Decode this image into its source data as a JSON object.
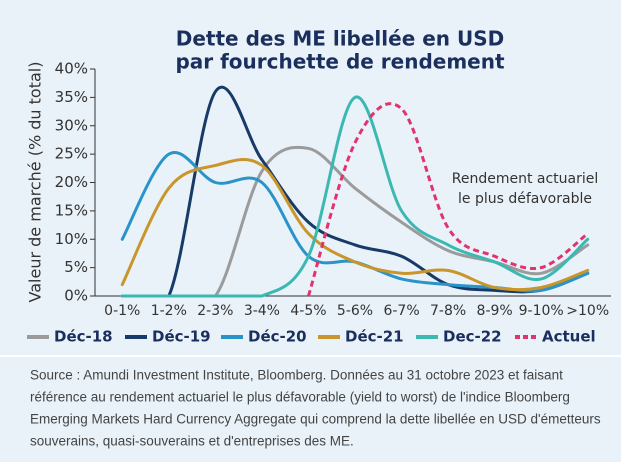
{
  "chart_data": {
    "type": "line",
    "title": [
      "Dette des ME libellée en USD",
      "par fourchette de rendement"
    ],
    "ylabel": "Valeur de marché (% du total)",
    "categories": [
      "0-1%",
      "1-2%",
      "2-3%",
      "3-4%",
      "4-5%",
      "5-6%",
      "6-7%",
      "7-8%",
      "8-9%",
      "9-10%",
      ">10%"
    ],
    "ylim": [
      0,
      40
    ],
    "yticks": [
      {
        "value": 0,
        "label": "0%"
      },
      {
        "value": 5,
        "label": "5%"
      },
      {
        "value": 10,
        "label": "10%"
      },
      {
        "value": 15,
        "label": "15%"
      },
      {
        "value": 20,
        "label": "20%"
      },
      {
        "value": 25,
        "label": "25%"
      },
      {
        "value": 30,
        "label": "30%"
      },
      {
        "value": 35,
        "label": "35%"
      },
      {
        "value": 40,
        "label": "40%"
      }
    ],
    "series": [
      {
        "name": "Déc-18",
        "color": "#9b9b9b",
        "dashed": false,
        "values": [
          0,
          0,
          0,
          22,
          26,
          19,
          13,
          8,
          6,
          4,
          9
        ]
      },
      {
        "name": "Déc-19",
        "color": "#173a68",
        "dashed": false,
        "values": [
          0,
          0,
          36,
          24,
          13,
          9,
          7,
          2,
          1,
          1,
          4
        ]
      },
      {
        "name": "Déc-20",
        "color": "#2a93c9",
        "dashed": false,
        "values": [
          10,
          25,
          20,
          20,
          7,
          6,
          3,
          2,
          1.5,
          1,
          4
        ]
      },
      {
        "name": "Déc-21",
        "color": "#c9962b",
        "dashed": false,
        "values": [
          2,
          19,
          23,
          23,
          11,
          6,
          4,
          4.5,
          1.5,
          1.5,
          4.5
        ]
      },
      {
        "name": "Dec-22",
        "color": "#3bb8b2",
        "dashed": false,
        "values": [
          0,
          0,
          0,
          0,
          7,
          35,
          15,
          9,
          6,
          3,
          10
        ]
      },
      {
        "name": "Actuel",
        "color": "#e2336f",
        "dashed": true,
        "values": [
          null,
          null,
          null,
          null,
          0,
          27,
          33,
          12,
          7,
          5,
          11
        ]
      }
    ],
    "annotation": [
      "Rendement actuariel",
      "le plus défavorable"
    ],
    "source": [
      "Source : Amundi Investment Institute, Bloomberg. Données au 31 octobre 2023 et faisant",
      "référence au rendement actuariel le plus défavorable (yield to worst) de l'indice Bloomberg",
      "Emerging Markets Hard Currency Aggregate qui comprend la dette libellée en USD d'émetteurs",
      "souverains, quasi-souverains et d'entreprises des ME."
    ]
  }
}
